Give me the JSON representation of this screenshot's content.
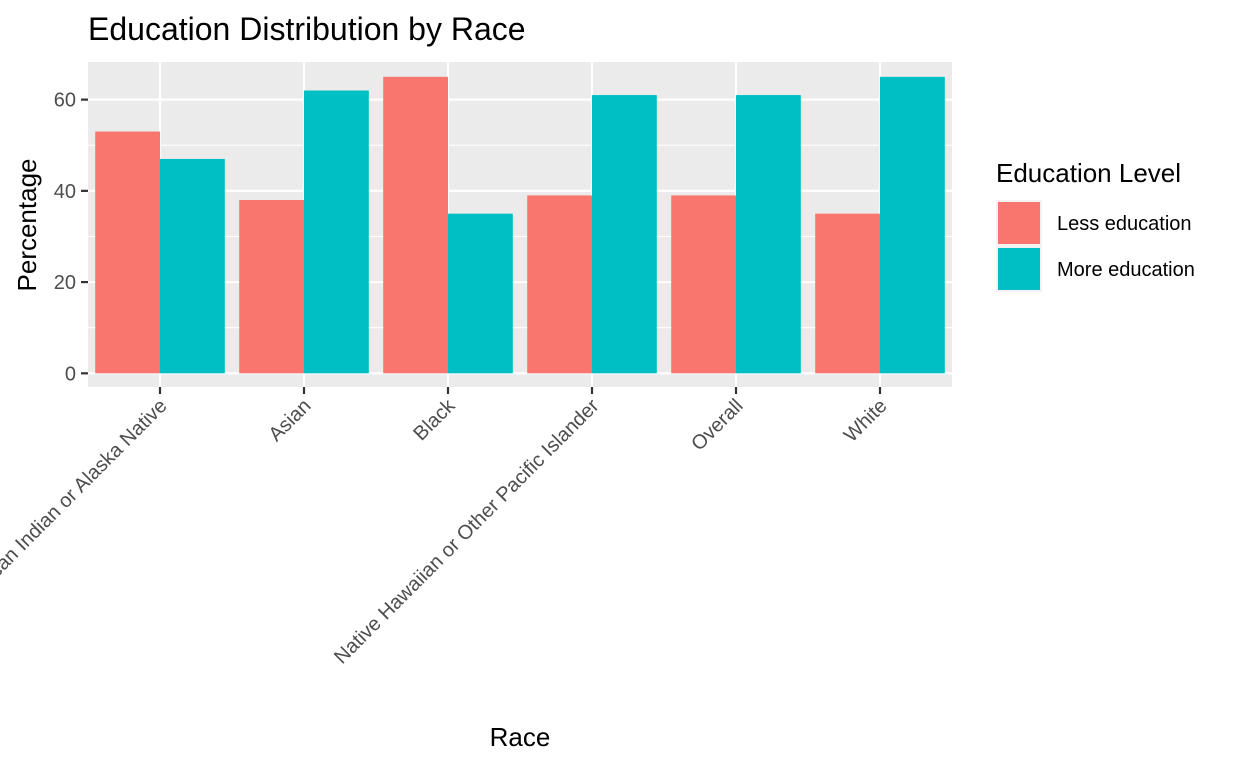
{
  "chart_data": {
    "type": "bar",
    "title": "Education Distribution by Race",
    "xlabel": "Race",
    "ylabel": "Percentage",
    "categories": [
      "American Indian or Alaska Native",
      "Asian",
      "Black",
      "Native Hawaiian or Other Pacific Islander",
      "Overall",
      "White"
    ],
    "series": [
      {
        "name": "Less education",
        "color": "#F8766D",
        "values": [
          53,
          38,
          65,
          39,
          39,
          35
        ]
      },
      {
        "name": "More education",
        "color": "#00BFC4",
        "values": [
          47,
          62,
          35,
          61,
          61,
          65
        ]
      }
    ],
    "ylim": [
      -3,
      68.25
    ],
    "yticks": [
      0,
      20,
      40,
      60
    ],
    "grid": true,
    "legend": {
      "title": "Education Level",
      "position": "right"
    },
    "panel_background": "#EBEBEB"
  }
}
